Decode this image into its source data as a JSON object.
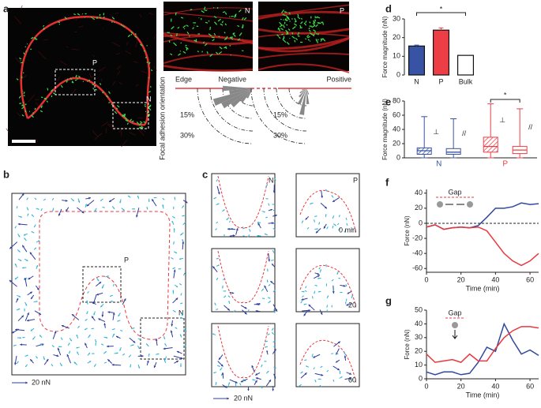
{
  "panel_letters": [
    "a",
    "b",
    "c",
    "d",
    "e",
    "f",
    "g"
  ],
  "panel_a": {
    "region_labels": [
      "P",
      "N"
    ],
    "inset_labels": [
      "N",
      "P"
    ],
    "edge_label": "Edge",
    "negative_label": "Negative",
    "positive_label": "Positive",
    "orientation_label": "Focal adhesion orientation",
    "ring_labels": [
      "15%",
      "30%",
      "15%",
      "30%"
    ]
  },
  "panel_b": {
    "region_labels": [
      "P",
      "N"
    ],
    "scale_label": "20 nN"
  },
  "panel_c": {
    "region_labels": [
      "N",
      "P"
    ],
    "time_labels": [
      "0 min",
      "20",
      "60"
    ],
    "scale_label": "20 nN"
  },
  "chart_data": [
    {
      "type": "bar",
      "ylabel": "Force magnitude (nN)",
      "categories": [
        "N",
        "P",
        "Bulk"
      ],
      "values": [
        15.5,
        24,
        10.5
      ],
      "errors": [
        0.5,
        1.2,
        null
      ],
      "colors": [
        "#3953a4",
        "#ee3e45",
        "#ffffff"
      ],
      "ylim": [
        0,
        30
      ],
      "yticks": [
        0,
        10,
        20,
        30
      ],
      "significance": {
        "text": "*",
        "from": 0,
        "to": 2
      }
    },
    {
      "type": "box",
      "ylabel": "Force magnitude (nN)",
      "groups": [
        {
          "name": "N",
          "color": "#3953a4",
          "boxes": [
            {
              "label": "⊥",
              "hatch": true,
              "min": 0,
              "q1": 5,
              "median": 10,
              "q3": 14,
              "max": 58
            },
            {
              "label": "//",
              "hatch": false,
              "min": 0,
              "q1": 5,
              "median": 8,
              "q3": 13,
              "max": 55
            }
          ]
        },
        {
          "name": "P",
          "color": "#ee3e45",
          "boxes": [
            {
              "label": "⊥",
              "hatch": true,
              "min": 0,
              "q1": 8,
              "median": 16,
              "q3": 29,
              "max": 76
            },
            {
              "label": "//",
              "hatch": false,
              "min": 0,
              "q1": 6,
              "median": 11,
              "q3": 16,
              "max": 69
            }
          ]
        }
      ],
      "ylim": [
        0,
        80
      ],
      "yticks": [
        0,
        20,
        40,
        60,
        80
      ],
      "significance": {
        "text": "*",
        "group": 1
      }
    },
    {
      "type": "line",
      "annotation": "Gap",
      "ylabel": "Force (nN)",
      "xlabel": "Time (min)",
      "x": [
        0,
        5,
        10,
        15,
        20,
        25,
        30,
        35,
        40,
        45,
        50,
        55,
        60,
        65
      ],
      "series": [
        {
          "color": "#2f49a0",
          "values": [
            -5,
            -2,
            -8,
            -6,
            -5,
            -6,
            -3,
            8,
            20,
            20,
            22,
            27,
            25,
            26
          ]
        },
        {
          "color": "#e8383f",
          "values": [
            -5,
            -2,
            -8,
            -6,
            -5,
            -6,
            -5,
            -10,
            -25,
            -40,
            -50,
            -56,
            -50,
            -40
          ]
        }
      ],
      "xlim": [
        0,
        65
      ],
      "xticks": [
        0,
        20,
        40,
        60
      ],
      "ylim": [
        -65,
        45
      ],
      "yticks": [
        -60,
        -40,
        -20,
        0,
        20,
        40
      ],
      "zero_line": true
    },
    {
      "type": "line",
      "annotation": "Gap",
      "ylabel": "Force (nN)",
      "xlabel": "Time (min)",
      "x": [
        0,
        5,
        10,
        15,
        20,
        25,
        30,
        35,
        40,
        45,
        50,
        55,
        60,
        65
      ],
      "series": [
        {
          "color": "#2f49a0",
          "values": [
            5,
            3,
            5,
            5,
            3,
            4,
            12,
            23,
            20,
            40,
            28,
            18,
            21,
            17
          ]
        },
        {
          "color": "#e8383f",
          "values": [
            18,
            12,
            13,
            14,
            12,
            18,
            13,
            13,
            22,
            30,
            35,
            38,
            38,
            37
          ]
        }
      ],
      "xlim": [
        0,
        65
      ],
      "xticks": [
        0,
        20,
        40,
        60
      ],
      "ylim": [
        0,
        50
      ],
      "yticks": [
        0,
        10,
        20,
        30,
        40,
        50
      ],
      "zero_line": false
    }
  ]
}
